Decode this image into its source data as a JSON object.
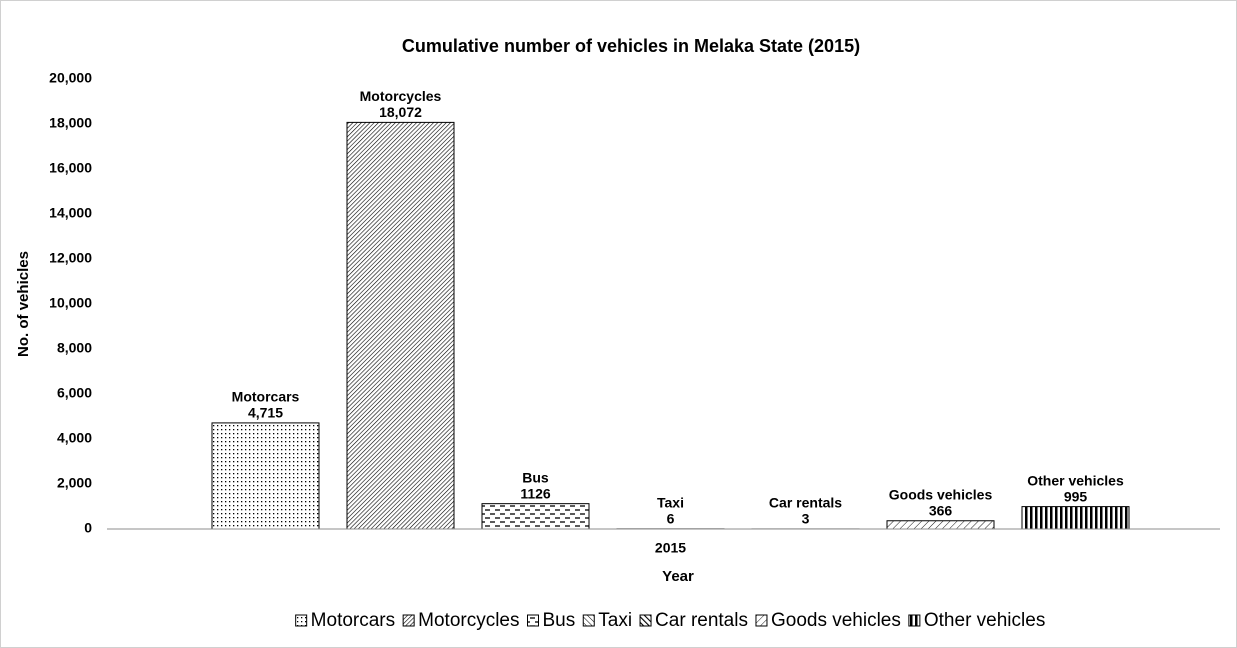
{
  "chart_data": {
    "type": "bar",
    "title": "Cumulative number of vehicles in Melaka State (2015)",
    "x_label": "Year",
    "y_label": "No. of vehicles",
    "categories": [
      "2015"
    ],
    "series": [
      {
        "name": "Motorcars",
        "color": "#000000",
        "pattern": "dots",
        "values": [
          4715
        ],
        "value_labels": [
          "4,715"
        ]
      },
      {
        "name": "Motorcycles",
        "color": "#000000",
        "pattern": "dense-diagonal",
        "values": [
          18072
        ],
        "value_labels": [
          "18,072"
        ]
      },
      {
        "name": "Bus",
        "color": "#000000",
        "pattern": "dashes",
        "values": [
          1126
        ]
      },
      {
        "name": "Taxi",
        "color": "#000000",
        "pattern": "cross-diagonal",
        "values": [
          6
        ]
      },
      {
        "name": "Car rentals",
        "color": "#000000",
        "pattern": "bold-diagonal",
        "values": [
          3
        ]
      },
      {
        "name": "Goods vehicles",
        "color": "#000000",
        "pattern": "light-diagonal",
        "values": [
          366
        ]
      },
      {
        "name": "Other vehicles",
        "color": "#000000",
        "pattern": "vertical",
        "values": [
          995
        ]
      }
    ],
    "ylim": [
      0,
      20000
    ],
    "yticks": [
      0,
      {
        "value": 2000,
        "label": "2,000"
      },
      {
        "value": 4000,
        "label": "4,000"
      },
      {
        "value": 6000,
        "label": "6,000"
      },
      {
        "value": 8000,
        "label": "8,000"
      },
      {
        "value": 10000,
        "label": "10,000"
      },
      {
        "value": 12000,
        "label": "12,000"
      },
      {
        "value": 14000,
        "label": "14,000"
      },
      {
        "value": 16000,
        "label": "16,000"
      },
      {
        "value": 18000,
        "label": "18,000"
      },
      {
        "value": 20000,
        "label": "20,000"
      }
    ],
    "grid": false,
    "legend": "bottom"
  }
}
